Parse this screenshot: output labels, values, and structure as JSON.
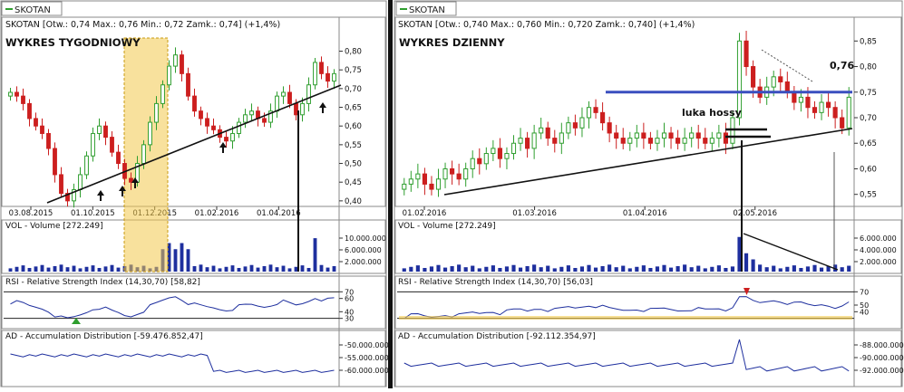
{
  "colors": {
    "up": "#2f9e2f",
    "down": "#cc1f1f",
    "blue": "#1e2f9e",
    "highlight": "#f2c94c",
    "grid": "#c0c0c0",
    "panel_border": "#8a8a8a"
  },
  "chart_data": [
    {
      "type": "candlestick",
      "symbol_tab": "SKOTAN",
      "header": "SKOTAN [Otw.: 0,74  Max.: 0,76  Min.: 0,72  Zamk.: 0,74] (+1,4%)",
      "title": "WYKRES TYGODNIOWY",
      "x_ticks": [
        "03.08.2015",
        "01.10.2015",
        "01.12.2015",
        "01.02.2016",
        "01.04.2016"
      ],
      "y_ticks": [
        "0,80",
        "0,75",
        "0,70",
        "0,65",
        "0,60",
        "0,55",
        "0,50",
        "0,45",
        "0,40"
      ],
      "ylim": [
        0.39,
        0.84
      ],
      "close_series": [
        0.69,
        0.68,
        0.66,
        0.62,
        0.6,
        0.58,
        0.54,
        0.47,
        0.42,
        0.4,
        0.43,
        0.47,
        0.52,
        0.58,
        0.6,
        0.57,
        0.53,
        0.5,
        0.46,
        0.45,
        0.5,
        0.55,
        0.61,
        0.66,
        0.71,
        0.76,
        0.79,
        0.74,
        0.68,
        0.64,
        0.62,
        0.6,
        0.59,
        0.57,
        0.56,
        0.58,
        0.61,
        0.63,
        0.64,
        0.62,
        0.61,
        0.64,
        0.68,
        0.69,
        0.66,
        0.63,
        0.66,
        0.71,
        0.77,
        0.74,
        0.72,
        0.74
      ],
      "arrows_at": [
        "~09.2015",
        "~10.2015",
        "~11.2015",
        "~02.2016",
        "~05.2016"
      ],
      "panels": {
        "volume": {
          "label": "VOL - Volume [272.249]",
          "y_ticks": [
            "10.000.000",
            "6.000.000",
            "2.000.000"
          ]
        },
        "rsi": {
          "label": "RSI - Relative Strength Index (14,30,70) [58,82]",
          "y_ticks": [
            "70",
            "60",
            "40",
            "30"
          ],
          "current": 58.82
        },
        "ad": {
          "label": "AD - Accumulation Distribution [-59.476.852,47]",
          "y_ticks": [
            "-50.000.000",
            "-55.000.000",
            "-60.000.000"
          ],
          "current": -59476852.47
        }
      }
    },
    {
      "type": "candlestick",
      "symbol_tab": "SKOTAN",
      "header": "SKOTAN [Otw.: 0,740  Max.: 0,760  Min.: 0,720  Zamk.: 0,740] (+1,4%)",
      "title": "WYKRES DZIENNY",
      "x_ticks": [
        "01.02.2016",
        "01.03.2016",
        "01.04.2016",
        "02.05.2016"
      ],
      "y_ticks": [
        "0,85",
        "0,80",
        "0,75",
        "0,70",
        "0,65",
        "0,60",
        "0,55"
      ],
      "ylim": [
        0.53,
        0.87
      ],
      "close_series": [
        0.57,
        0.58,
        0.59,
        0.57,
        0.56,
        0.58,
        0.6,
        0.59,
        0.58,
        0.6,
        0.62,
        0.61,
        0.63,
        0.64,
        0.62,
        0.63,
        0.65,
        0.66,
        0.64,
        0.67,
        0.68,
        0.66,
        0.65,
        0.67,
        0.69,
        0.68,
        0.7,
        0.72,
        0.71,
        0.69,
        0.67,
        0.66,
        0.65,
        0.66,
        0.67,
        0.66,
        0.65,
        0.66,
        0.67,
        0.66,
        0.65,
        0.66,
        0.67,
        0.66,
        0.65,
        0.66,
        0.67,
        0.65,
        0.7,
        0.85,
        0.8,
        0.76,
        0.74,
        0.76,
        0.78,
        0.77,
        0.75,
        0.73,
        0.74,
        0.72,
        0.71,
        0.73,
        0.72,
        0.7,
        0.68,
        0.74
      ],
      "annotations": {
        "price_label": "0,76",
        "gap_label": "luka hossy",
        "resistance": 0.75
      },
      "panels": {
        "volume": {
          "label": "VOL - Volume [272.249]",
          "y_ticks": [
            "6.000.000",
            "4.000.000",
            "2.000.000"
          ]
        },
        "rsi": {
          "label": "RSI - Relative Strength Index (14,30,70) [56,03]",
          "y_ticks": [
            "70",
            "50",
            "40"
          ],
          "current": 56.03
        },
        "ad": {
          "label": "AD - Accumulation Distribution [-92.112.354,97]",
          "y_ticks": [
            "-88.000.000",
            "-90.000.000",
            "-92.000.000"
          ],
          "current": -92112354.97
        }
      }
    }
  ]
}
